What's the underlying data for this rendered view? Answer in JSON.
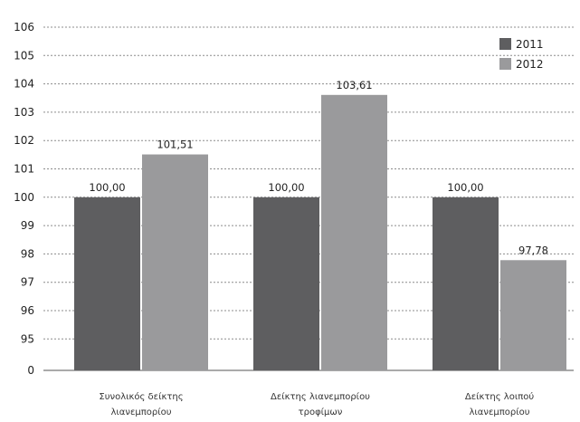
{
  "chart_data": {
    "type": "bar",
    "categories": [
      [
        "Συνολικός δείκτης",
        "λιανεμπορίου"
      ],
      [
        "Δείκτης λιανεμπορίου",
        "τροφίμων"
      ],
      [
        "Δείκτης λοιπού",
        "λιανεμπορίου"
      ]
    ],
    "series": [
      {
        "name": "2011",
        "values": [
          100.0,
          100.0,
          100.0
        ],
        "labels": [
          "100,00",
          "100,00",
          "100,00"
        ],
        "color": "#5e5e60"
      },
      {
        "name": "2012",
        "values": [
          101.51,
          103.61,
          97.78
        ],
        "labels": [
          "101,51",
          "103,61",
          "97,78"
        ],
        "color": "#9a9a9c"
      }
    ],
    "yticks": [
      "0",
      "95",
      "96",
      "97",
      "98",
      "99",
      "100",
      "101",
      "102",
      "103",
      "104",
      "105",
      "106"
    ],
    "ylim": [
      94,
      106
    ],
    "axis_break": true,
    "grid": true,
    "legend_position": "top-right"
  }
}
